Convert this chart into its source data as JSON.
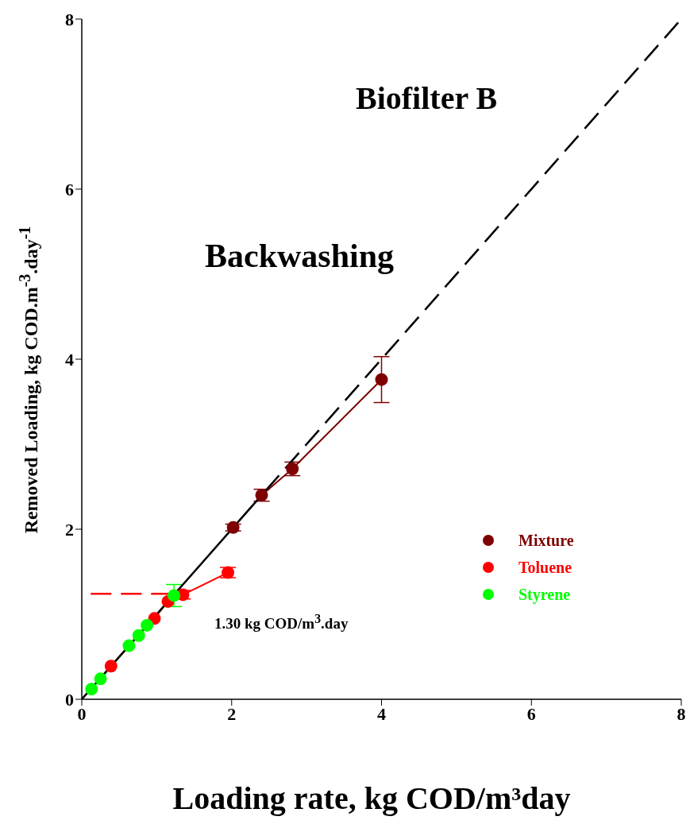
{
  "chart_data": {
    "type": "line",
    "title": "Biofilter B",
    "xlabel": "Loading rate, kg COD/m³day",
    "ylabel": "Removed Loading, kg COD.m$^{-3}$.day$^{-1}$",
    "annotations": [
      "Backwashing",
      "1.30 kg COD/m$^{3}$.day"
    ],
    "xlim": [
      0,
      8
    ],
    "xticks": [
      0,
      2,
      4,
      6,
      8
    ],
    "ylim": [
      0,
      8
    ],
    "yticks": [
      0,
      2,
      4,
      6,
      8
    ],
    "grid": false,
    "legend": "right",
    "marker": "circle",
    "series": [
      {
        "name": "Mixture",
        "color": "#7f0000",
        "x": [
          2.02,
          2.4,
          2.81,
          4.0
        ],
        "values": [
          2.02,
          2.4,
          2.71,
          3.76
        ],
        "errors": [
          0.04,
          0.07,
          0.08,
          [
            3.49,
            4.03
          ]
        ]
      },
      {
        "name": "Toluene",
        "color": "#ff0000",
        "x": [
          0.39,
          0.97,
          1.15,
          1.35,
          1.95
        ],
        "values": [
          0.39,
          0.95,
          1.15,
          1.23,
          1.49
        ],
        "errors": [
          null,
          null,
          null,
          0.05,
          0.06
        ]
      },
      {
        "name": "Styrene",
        "color": "#00ff00",
        "x": [
          0.13,
          0.25,
          0.63,
          0.76,
          0.87,
          1.23
        ],
        "values": [
          0.12,
          0.24,
          0.63,
          0.75,
          0.87,
          1.22
        ],
        "errors": [
          null,
          null,
          null,
          null,
          null,
          [
            1.09,
            1.35
          ]
        ]
      },
      {
        "type": "line",
        "color": "#000000",
        "marker": "none",
        "line_style": "solid",
        "x": [
          0,
          2.45
        ],
        "values": [
          0,
          2.45
        ]
      },
      {
        "type": "line",
        "color": "#000000",
        "marker": "none",
        "line_style": "dashed",
        "x": [
          2.45,
          8
        ],
        "values": [
          2.45,
          8
        ]
      },
      {
        "type": "line",
        "color": "#ff0000",
        "marker": "none",
        "line_style": "dashed",
        "x": [
          0.12,
          1.2
        ],
        "values": [
          1.24,
          1.24
        ]
      }
    ]
  }
}
